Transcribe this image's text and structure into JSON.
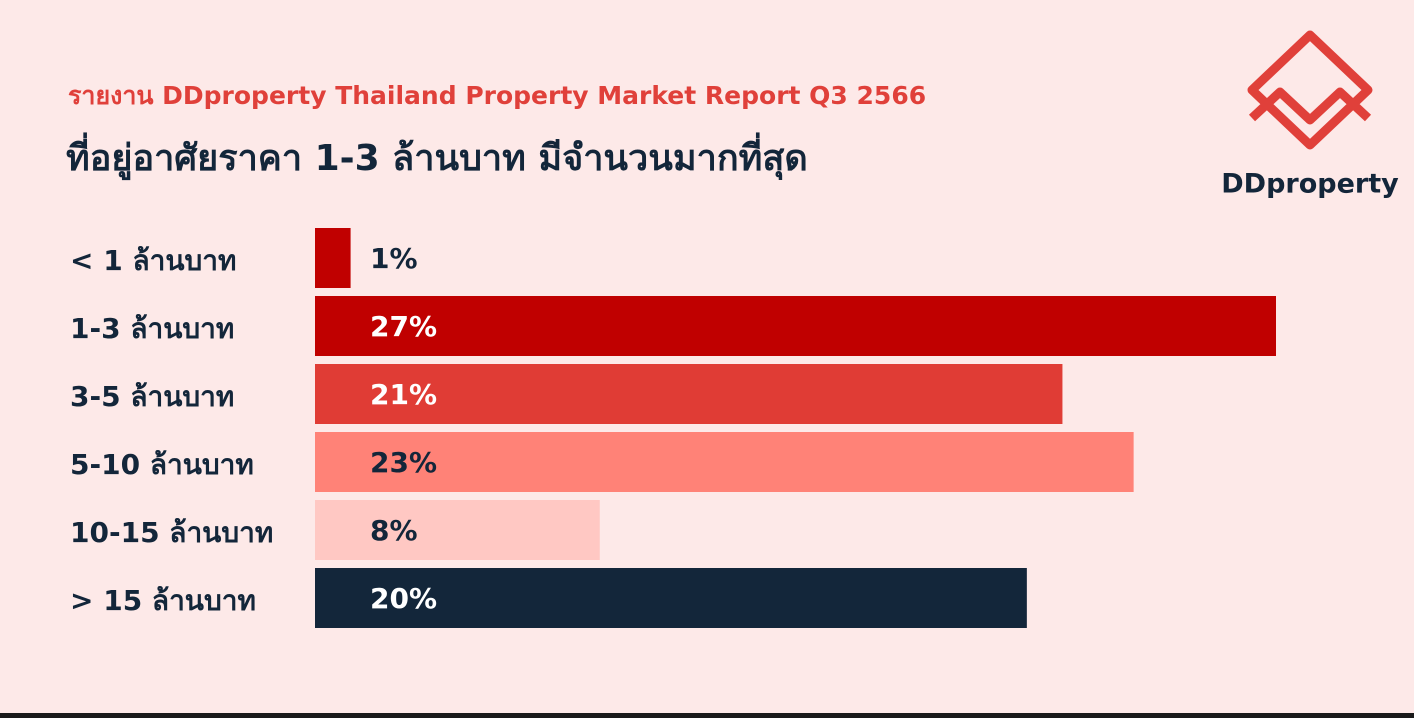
{
  "logo": "DDproperty",
  "chart_data": {
    "type": "bar",
    "orientation": "horizontal",
    "subtitle": "รายงาน DDproperty Thailand Property Market Report Q3 2566",
    "title": "ที่อยู่อาศัยราคา 1-3 ล้านบาท มีจำนวนมากที่สุด",
    "categories": [
      "< 1 ล้านบาท",
      "1-3 ล้านบาท",
      "3-5 ล้านบาท",
      "5-10 ล้านบาท",
      "10-15 ล้านบาท",
      "> 15 ล้านบาท"
    ],
    "values": [
      1,
      27,
      21,
      23,
      8,
      20
    ],
    "value_labels": [
      "1%",
      "27%",
      "21%",
      "23%",
      "8%",
      "20%"
    ],
    "colors": [
      "#c00000",
      "#c00000",
      "#e03c35",
      "#ff8277",
      "#ffc8c3",
      "#13263a"
    ]
  }
}
